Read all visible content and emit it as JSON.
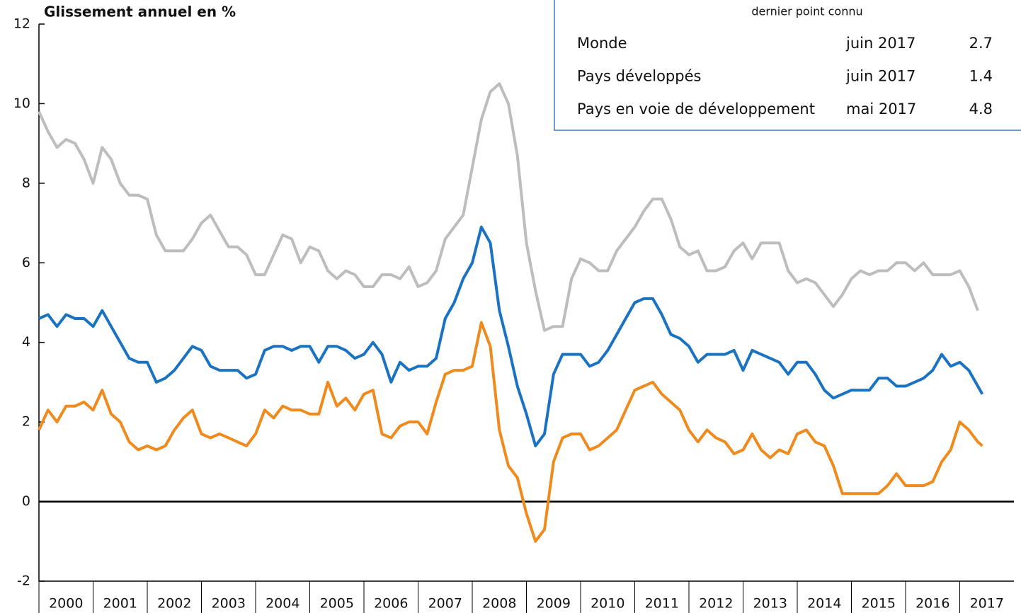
{
  "chart_data": {
    "type": "line",
    "title": "Glissement annuel en %",
    "legend_title": "dernier point connu",
    "x": [
      2000,
      2000.167,
      2000.333,
      2000.5,
      2000.667,
      2000.833,
      2001,
      2001.167,
      2001.333,
      2001.5,
      2001.667,
      2001.833,
      2002,
      2002.167,
      2002.333,
      2002.5,
      2002.667,
      2002.833,
      2003,
      2003.167,
      2003.333,
      2003.5,
      2003.667,
      2003.833,
      2004,
      2004.167,
      2004.333,
      2004.5,
      2004.667,
      2004.833,
      2005,
      2005.167,
      2005.333,
      2005.5,
      2005.667,
      2005.833,
      2006,
      2006.167,
      2006.333,
      2006.5,
      2006.667,
      2006.833,
      2007,
      2007.167,
      2007.333,
      2007.5,
      2007.667,
      2007.833,
      2008,
      2008.167,
      2008.333,
      2008.5,
      2008.667,
      2008.833,
      2009,
      2009.167,
      2009.333,
      2009.5,
      2009.667,
      2009.833,
      2010,
      2010.167,
      2010.333,
      2010.5,
      2010.667,
      2010.833,
      2011,
      2011.167,
      2011.333,
      2011.5,
      2011.667,
      2011.833,
      2012,
      2012.167,
      2012.333,
      2012.5,
      2012.667,
      2012.833,
      2013,
      2013.167,
      2013.333,
      2013.5,
      2013.667,
      2013.833,
      2014,
      2014.167,
      2014.333,
      2014.5,
      2014.667,
      2014.833,
      2015,
      2015.167,
      2015.333,
      2015.5,
      2015.667,
      2015.833,
      2016,
      2016.167,
      2016.333,
      2016.5,
      2016.667,
      2016.833,
      2017,
      2017.167,
      2017.333,
      2017.417
    ],
    "series": [
      {
        "name": "Monde",
        "color": "#1a73c2",
        "last_date": "juin 2017",
        "last_value": 2.7,
        "values": [
          4.6,
          4.7,
          4.4,
          4.7,
          4.6,
          4.6,
          4.4,
          4.8,
          4.4,
          4.0,
          3.6,
          3.5,
          3.5,
          3.0,
          3.1,
          3.3,
          3.6,
          3.9,
          3.8,
          3.4,
          3.3,
          3.3,
          3.3,
          3.1,
          3.2,
          3.8,
          3.9,
          3.9,
          3.8,
          3.9,
          3.9,
          3.5,
          3.9,
          3.9,
          3.8,
          3.6,
          3.7,
          4.0,
          3.7,
          3.0,
          3.5,
          3.3,
          3.4,
          3.4,
          3.6,
          4.6,
          5.0,
          5.6,
          6.0,
          6.9,
          6.5,
          4.8,
          3.9,
          2.9,
          2.2,
          1.4,
          1.7,
          3.2,
          3.7,
          3.7,
          3.7,
          3.4,
          3.5,
          3.8,
          4.2,
          4.6,
          5.0,
          5.1,
          5.1,
          4.7,
          4.2,
          4.1,
          3.9,
          3.5,
          3.7,
          3.7,
          3.7,
          3.8,
          3.3,
          3.8,
          3.7,
          3.6,
          3.5,
          3.2,
          3.5,
          3.5,
          3.2,
          2.8,
          2.6,
          2.7,
          2.8,
          2.8,
          2.8,
          3.1,
          3.1,
          2.9,
          2.9,
          3.0,
          3.1,
          3.3,
          3.7,
          3.4,
          3.5,
          3.3,
          2.9,
          2.7
        ]
      },
      {
        "name": "Pays développés",
        "color": "#f08a1c",
        "last_date": "juin 2017",
        "last_value": 1.4,
        "values": [
          1.8,
          2.3,
          2.0,
          2.4,
          2.4,
          2.5,
          2.3,
          2.8,
          2.2,
          2.0,
          1.5,
          1.3,
          1.4,
          1.3,
          1.4,
          1.8,
          2.1,
          2.3,
          1.7,
          1.6,
          1.7,
          1.6,
          1.5,
          1.4,
          1.7,
          2.3,
          2.1,
          2.4,
          2.3,
          2.3,
          2.2,
          2.2,
          3.0,
          2.4,
          2.6,
          2.3,
          2.7,
          2.8,
          1.7,
          1.6,
          1.9,
          2.0,
          2.0,
          1.7,
          2.5,
          3.2,
          3.3,
          3.3,
          3.4,
          4.5,
          3.9,
          1.8,
          0.9,
          0.6,
          -0.3,
          -1.0,
          -0.7,
          1.0,
          1.6,
          1.7,
          1.7,
          1.3,
          1.4,
          1.6,
          1.8,
          2.3,
          2.8,
          2.9,
          3.0,
          2.7,
          2.5,
          2.3,
          1.8,
          1.5,
          1.8,
          1.6,
          1.5,
          1.2,
          1.3,
          1.7,
          1.3,
          1.1,
          1.3,
          1.2,
          1.7,
          1.8,
          1.5,
          1.4,
          0.9,
          0.2,
          0.2,
          0.2,
          0.2,
          0.2,
          0.4,
          0.7,
          0.4,
          0.4,
          0.4,
          0.5,
          1.0,
          1.3,
          2.0,
          1.8,
          1.5,
          1.4
        ]
      },
      {
        "name": "Pays en voie de développement",
        "color": "#bdbdbd",
        "last_date": "mai 2017",
        "last_value": 4.8,
        "values": [
          9.8,
          9.3,
          8.9,
          9.1,
          9.0,
          8.6,
          8.0,
          8.9,
          8.6,
          8.0,
          7.7,
          7.7,
          7.6,
          6.7,
          6.3,
          6.3,
          6.3,
          6.6,
          7.0,
          7.2,
          6.8,
          6.4,
          6.4,
          6.2,
          5.7,
          5.7,
          6.2,
          6.7,
          6.6,
          6.0,
          6.4,
          6.3,
          5.8,
          5.6,
          5.8,
          5.7,
          5.4,
          5.4,
          5.7,
          5.7,
          5.6,
          5.9,
          5.4,
          5.5,
          5.8,
          6.6,
          6.9,
          7.2,
          8.4,
          9.6,
          10.3,
          10.5,
          10.0,
          8.7,
          6.5,
          5.3,
          4.3,
          4.4,
          4.4,
          5.6,
          6.1,
          6.0,
          5.8,
          5.8,
          6.3,
          6.6,
          6.9,
          7.3,
          7.6,
          7.6,
          7.1,
          6.4,
          6.2,
          6.3,
          5.8,
          5.8,
          5.9,
          6.3,
          6.5,
          6.1,
          6.5,
          6.5,
          6.5,
          5.8,
          5.5,
          5.6,
          5.5,
          5.2,
          4.9,
          5.2,
          5.6,
          5.8,
          5.7,
          5.8,
          5.8,
          6.0,
          6.0,
          5.8,
          6.0,
          5.7,
          5.7,
          5.7,
          5.8,
          5.4,
          4.8,
          null
        ]
      }
    ],
    "xlim": [
      2000,
      2018
    ],
    "xticks": [
      2000,
      2001,
      2002,
      2003,
      2004,
      2005,
      2006,
      2007,
      2008,
      2009,
      2010,
      2011,
      2012,
      2013,
      2014,
      2015,
      2016,
      2017
    ],
    "ylim": [
      -2,
      12
    ],
    "yticks": [
      -2,
      0,
      2,
      4,
      6,
      8,
      10,
      12
    ],
    "grid": false
  }
}
